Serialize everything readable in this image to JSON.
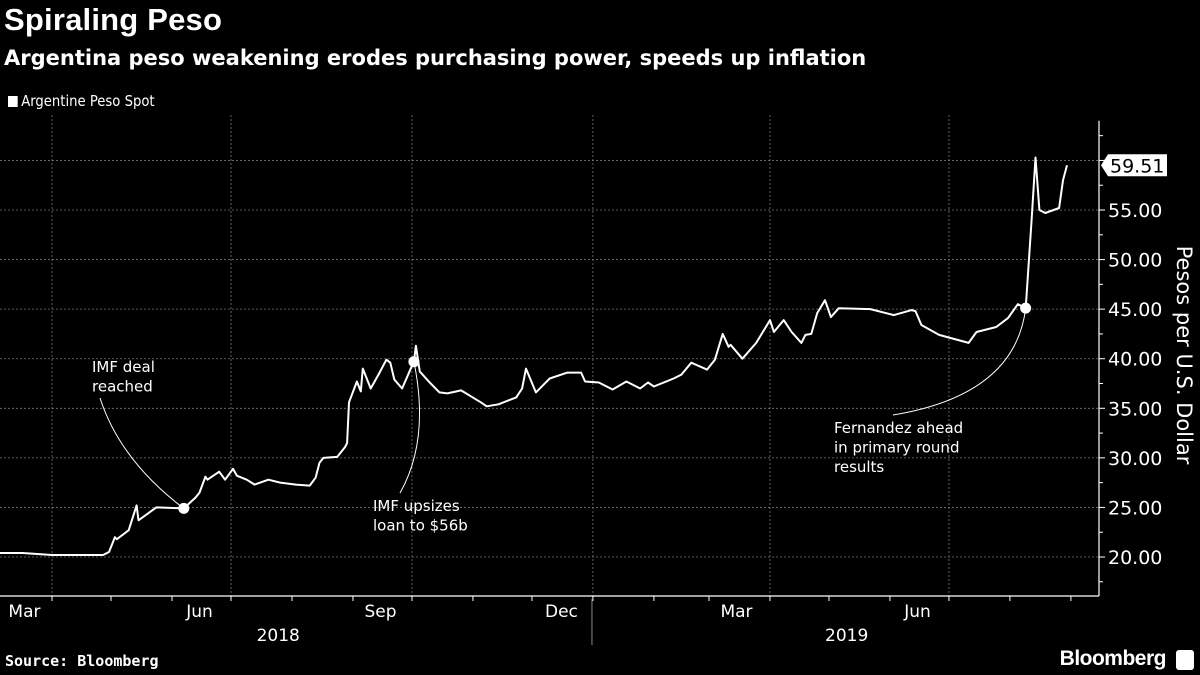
{
  "chart_data": {
    "type": "line",
    "title": "Spiraling Peso",
    "subtitle": "Argentina peso weakening erodes purchasing power, speeds up inflation",
    "ylabel": "Pesos per U.S. Dollar",
    "ylim": [
      16,
      64
    ],
    "yticks": [
      "20.00",
      "25.00",
      "30.00",
      "35.00",
      "40.00",
      "45.00",
      "50.00",
      "55.00"
    ],
    "ytick_values": [
      20,
      25,
      30,
      35,
      40,
      45,
      50,
      55
    ],
    "xlim": [
      "2018-03-05",
      "2019-09-15"
    ],
    "month_labels": [
      {
        "label": "Mar",
        "date": "2018-03-18"
      },
      {
        "label": "Jun",
        "date": "2018-06-15"
      },
      {
        "label": "Sep",
        "date": "2018-09-15"
      },
      {
        "label": "Dec",
        "date": "2018-12-16"
      },
      {
        "label": "Mar",
        "date": "2019-03-15"
      },
      {
        "label": "Jun",
        "date": "2019-06-15"
      }
    ],
    "year_labels": [
      {
        "label": "2018",
        "date": "2018-07-25"
      },
      {
        "label": "2019",
        "date": "2019-05-10"
      }
    ],
    "grid": true,
    "legend_position": "top-left",
    "series": [
      {
        "name": "Argentine Peso Spot",
        "color": "#ffffff",
        "last_value_label": "59.51",
        "points": [
          [
            "2018-03-05",
            20.4
          ],
          [
            "2018-03-17",
            20.4
          ],
          [
            "2018-04-01",
            20.2
          ],
          [
            "2018-04-27",
            20.2
          ],
          [
            "2018-04-30",
            20.5
          ],
          [
            "2018-05-03",
            22.0
          ],
          [
            "2018-05-04",
            21.8
          ],
          [
            "2018-05-10",
            22.7
          ],
          [
            "2018-05-14",
            25.2
          ],
          [
            "2018-05-15",
            23.7
          ],
          [
            "2018-05-24",
            25.0
          ],
          [
            "2018-06-07",
            24.9
          ],
          [
            "2018-06-13",
            26.0
          ],
          [
            "2018-06-15",
            26.5
          ],
          [
            "2018-06-18",
            28.1
          ],
          [
            "2018-06-19",
            27.8
          ],
          [
            "2018-06-25",
            28.6
          ],
          [
            "2018-06-28",
            27.8
          ],
          [
            "2018-07-02",
            28.9
          ],
          [
            "2018-07-04",
            28.2
          ],
          [
            "2018-07-09",
            27.8
          ],
          [
            "2018-07-13",
            27.3
          ],
          [
            "2018-07-20",
            27.8
          ],
          [
            "2018-07-26",
            27.5
          ],
          [
            "2018-08-03",
            27.3
          ],
          [
            "2018-08-10",
            27.2
          ],
          [
            "2018-08-13",
            28.0
          ],
          [
            "2018-08-15",
            29.5
          ],
          [
            "2018-08-17",
            30.0
          ],
          [
            "2018-08-24",
            30.1
          ],
          [
            "2018-08-28",
            31.1
          ],
          [
            "2018-08-29",
            31.5
          ],
          [
            "2018-08-30",
            35.6
          ],
          [
            "2018-09-03",
            37.7
          ],
          [
            "2018-09-05",
            36.7
          ],
          [
            "2018-09-06",
            39.0
          ],
          [
            "2018-09-10",
            37.0
          ],
          [
            "2018-09-14",
            38.4
          ],
          [
            "2018-09-18",
            39.9
          ],
          [
            "2018-09-20",
            39.6
          ],
          [
            "2018-09-22",
            37.9
          ],
          [
            "2018-09-26",
            37.0
          ],
          [
            "2018-10-01",
            39.3
          ],
          [
            "2018-10-02",
            39.7
          ],
          [
            "2018-10-03",
            41.3
          ],
          [
            "2018-10-05",
            38.7
          ],
          [
            "2018-10-10",
            37.6
          ],
          [
            "2018-10-15",
            36.6
          ],
          [
            "2018-10-19",
            36.5
          ],
          [
            "2018-10-26",
            36.8
          ],
          [
            "2018-11-05",
            35.6
          ],
          [
            "2018-11-08",
            35.2
          ],
          [
            "2018-11-14",
            35.4
          ],
          [
            "2018-11-23",
            36.1
          ],
          [
            "2018-11-26",
            37.0
          ],
          [
            "2018-11-28",
            39.0
          ],
          [
            "2018-12-03",
            36.6
          ],
          [
            "2018-12-10",
            38.0
          ],
          [
            "2018-12-19",
            38.6
          ],
          [
            "2018-12-26",
            38.6
          ],
          [
            "2018-12-28",
            37.7
          ],
          [
            "2019-01-04",
            37.6
          ],
          [
            "2019-01-11",
            36.9
          ],
          [
            "2019-01-18",
            37.7
          ],
          [
            "2019-01-25",
            37.0
          ],
          [
            "2019-01-29",
            37.6
          ],
          [
            "2019-02-01",
            37.2
          ],
          [
            "2019-02-11",
            38.0
          ],
          [
            "2019-02-15",
            38.4
          ],
          [
            "2019-02-20",
            39.6
          ],
          [
            "2019-02-28",
            38.9
          ],
          [
            "2019-03-04",
            39.9
          ],
          [
            "2019-03-08",
            42.5
          ],
          [
            "2019-03-11",
            41.2
          ],
          [
            "2019-03-12",
            41.4
          ],
          [
            "2019-03-18",
            40.0
          ],
          [
            "2019-03-25",
            41.6
          ],
          [
            "2019-04-01",
            43.9
          ],
          [
            "2019-04-03",
            42.7
          ],
          [
            "2019-04-08",
            43.9
          ],
          [
            "2019-04-12",
            42.7
          ],
          [
            "2019-04-17",
            41.6
          ],
          [
            "2019-04-19",
            42.4
          ],
          [
            "2019-04-22",
            42.5
          ],
          [
            "2019-04-25",
            44.6
          ],
          [
            "2019-04-29",
            45.9
          ],
          [
            "2019-05-02",
            44.2
          ],
          [
            "2019-05-06",
            45.1
          ],
          [
            "2019-05-22",
            45.0
          ],
          [
            "2019-06-03",
            44.4
          ],
          [
            "2019-06-12",
            44.9
          ],
          [
            "2019-06-14",
            44.8
          ],
          [
            "2019-06-17",
            43.4
          ],
          [
            "2019-06-26",
            42.4
          ],
          [
            "2019-07-11",
            41.6
          ],
          [
            "2019-07-15",
            42.7
          ],
          [
            "2019-07-25",
            43.2
          ],
          [
            "2019-07-31",
            44.1
          ],
          [
            "2019-08-05",
            45.5
          ],
          [
            "2019-08-09",
            45.1
          ],
          [
            "2019-08-12",
            54.0
          ],
          [
            "2019-08-14",
            60.3
          ],
          [
            "2019-08-16",
            55.0
          ],
          [
            "2019-08-19",
            54.7
          ],
          [
            "2019-08-26",
            55.2
          ],
          [
            "2019-08-28",
            58.0
          ],
          [
            "2019-08-30",
            59.51
          ]
        ]
      }
    ],
    "annotations": [
      {
        "lines": [
          "IMF deal",
          "reached"
        ],
        "date": "2018-06-07",
        "value": 24.9
      },
      {
        "lines": [
          "IMF upsizes",
          "loan to $56b"
        ],
        "date": "2018-10-02",
        "value": 39.7
      },
      {
        "lines": [
          "Fernandez ahead",
          "in primary round",
          "results"
        ],
        "date": "2019-08-09",
        "value": 45.1
      }
    ]
  },
  "footer": {
    "source": "Source: Bloomberg",
    "logo": "Bloomberg",
    "logo_icon": "bloomberg-terminal-icon"
  }
}
